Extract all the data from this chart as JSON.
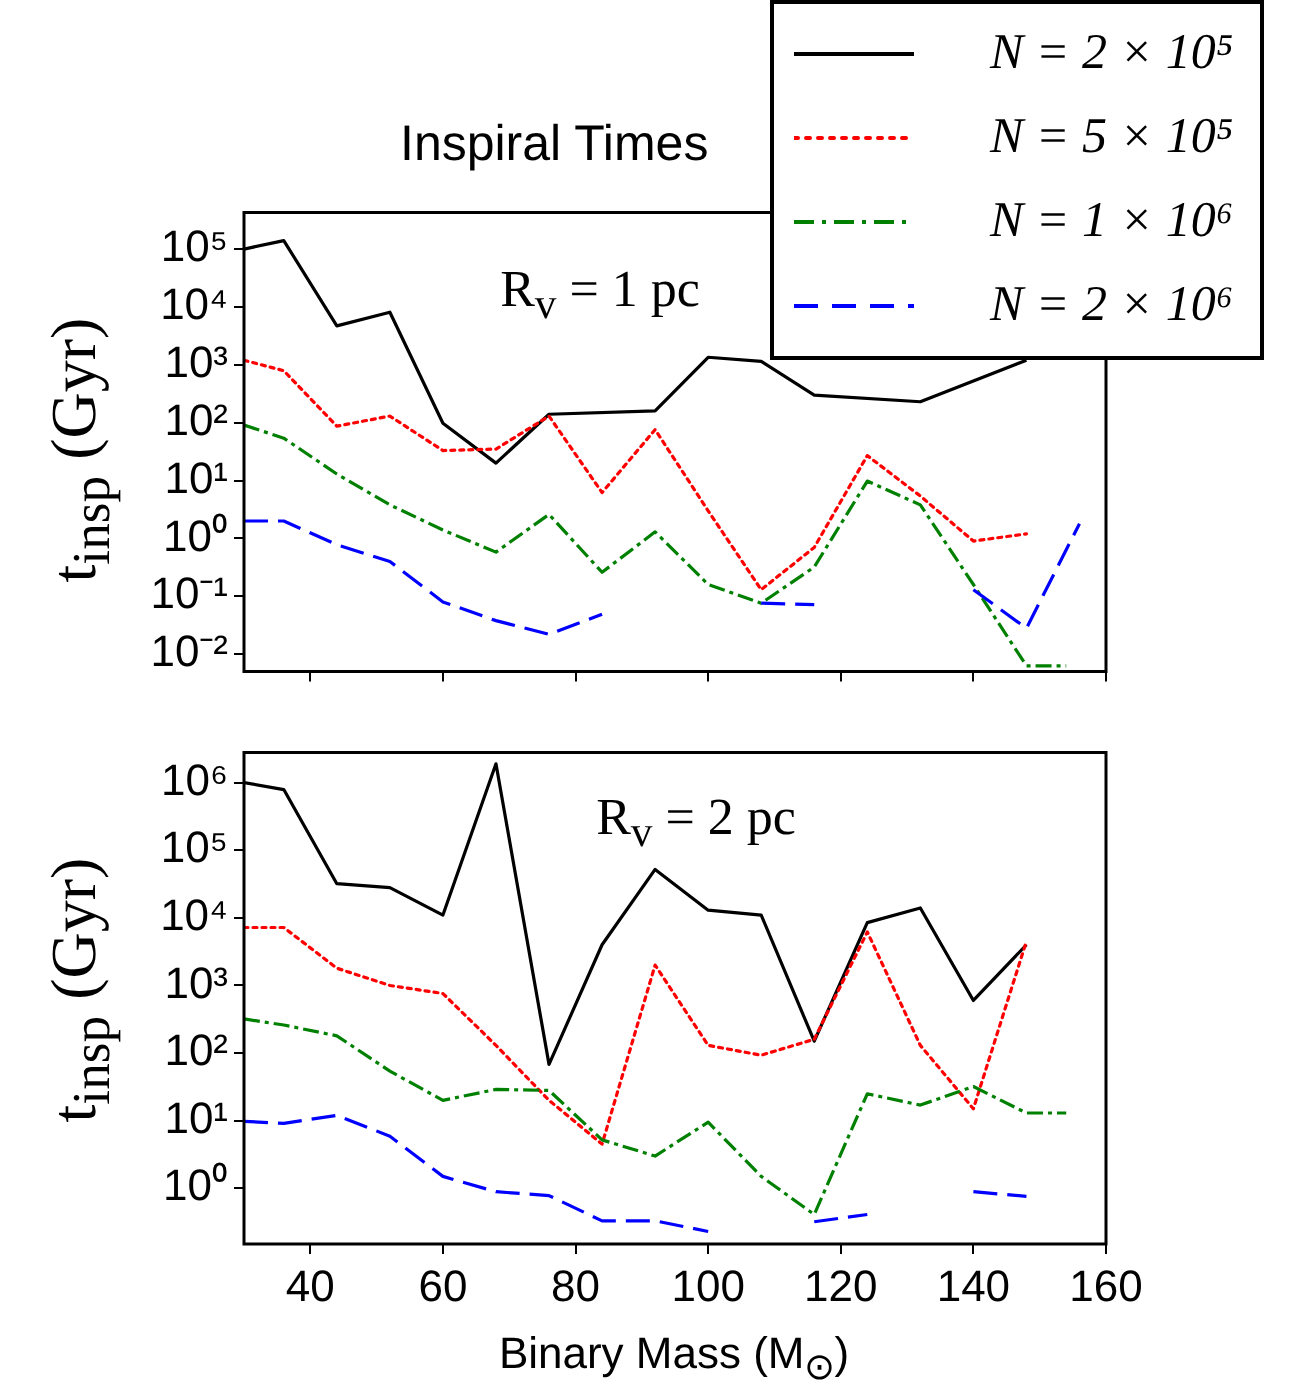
{
  "chart_data": [
    {
      "type": "line",
      "title": "Inspiral Times",
      "ylabel": "t$_{insp}$ (Gyr)",
      "annotations": [
        "R$_{v}$ = 1 pc"
      ],
      "log": "y",
      "grid": false,
      "legend": "top right",
      "tick_labels": "y",
      "xlim": [
        30,
        160
      ],
      "xticks": [
        40,
        60,
        80,
        100,
        120,
        140,
        160
      ],
      "ylim": [
        0.005,
        430000
      ],
      "yticks": [
        {
          "value": 0.01,
          "label": "10⁻²"
        },
        {
          "value": 0.1,
          "label": "10⁻¹"
        },
        {
          "value": 1,
          "label": "10⁰"
        },
        {
          "value": 10,
          "label": "10¹"
        },
        {
          "value": 100,
          "label": "10²"
        },
        {
          "value": 1000,
          "label": "10³"
        },
        {
          "value": 10000,
          "label": "10⁴"
        },
        {
          "value": 100000,
          "label": "10⁵"
        }
      ],
      "series": [
        {
          "name": "N = 2 × 10⁵",
          "color": "#000000",
          "line_style": "solid",
          "x": [
            30,
            36,
            44,
            52,
            60,
            68,
            76,
            92,
            100,
            108,
            116,
            132,
            148
          ],
          "values": [
            100000,
            140000,
            4700,
            8100,
            98,
            20,
            140,
            160,
            1350,
            1150,
            300,
            230,
            1200
          ]
        },
        {
          "name": "N = 5 × 10⁵",
          "color": "#ff0000",
          "line_style": "dotted",
          "x": [
            30,
            36,
            44,
            52,
            60,
            68,
            76,
            84,
            92,
            100,
            108,
            116,
            124,
            132,
            140,
            148
          ],
          "values": [
            1200,
            790,
            87,
            130,
            33,
            35,
            130,
            6.2,
            76,
            3,
            0.13,
            0.7,
            27,
            5.4,
            0.9,
            1.2
          ]
        },
        {
          "name": "N = 1 × 10⁶",
          "color": "#008000",
          "line_style": "dashdot",
          "x": [
            30,
            36,
            44,
            52,
            60,
            68,
            76,
            84,
            92,
            100,
            108,
            116,
            124,
            132,
            140,
            148,
            154
          ],
          "values": [
            91,
            54,
            13,
            3.8,
            1.4,
            0.58,
            2.6,
            0.26,
            1.3,
            0.16,
            0.076,
            0.32,
            9.8,
            3.8,
            0.16,
            0.0063,
            0.0063
          ]
        },
        {
          "name": "N = 2 × 10⁶",
          "color": "#0000ff",
          "line_style": "dashed",
          "x": [
            30,
            36,
            44,
            52,
            60,
            68,
            76,
            84,
            92,
            100,
            108,
            116,
            124,
            132,
            140,
            148,
            156
          ],
          "values": [
            2,
            2,
            0.78,
            0.4,
            0.08,
            0.038,
            0.022,
            0.049,
            null,
            null,
            0.076,
            0.072,
            null,
            null,
            0.13,
            0.028,
            1.8
          ]
        }
      ]
    },
    {
      "type": "line",
      "xlabel": "Binary Mass (M$_{⊙}$)",
      "ylabel": "t$_{insp}$ (Gyr)",
      "annotations": [
        "R$_{v}$ = 2 pc"
      ],
      "log": "y",
      "grid": false,
      "xlim": [
        30,
        160
      ],
      "xticks": [
        40,
        60,
        80,
        100,
        120,
        140,
        160
      ],
      "ylim": [
        0.15,
        2800000
      ],
      "yticks": [
        {
          "value": 1,
          "label": "10⁰"
        },
        {
          "value": 10,
          "label": "10¹"
        },
        {
          "value": 100,
          "label": "10²"
        },
        {
          "value": 1000,
          "label": "10³"
        },
        {
          "value": 10000,
          "label": "10⁴"
        },
        {
          "value": 100000,
          "label": "10⁵"
        },
        {
          "value": 1000000,
          "label": "10⁶"
        }
      ],
      "series": [
        {
          "color": "#000000",
          "line_style": "solid",
          "x": [
            30,
            36,
            44,
            52,
            60,
            68,
            76,
            84,
            92,
            100,
            108,
            116,
            124,
            132,
            140,
            148
          ],
          "values": [
            1000000,
            790000,
            32000,
            28000,
            11000,
            1900000,
            68,
            4000,
            52000,
            13000,
            11000,
            150,
            8500,
            14000,
            600,
            4000
          ]
        },
        {
          "color": "#ff0000",
          "line_style": "dotted",
          "x": [
            30,
            36,
            44,
            52,
            60,
            68,
            76,
            84,
            92,
            100,
            108,
            116,
            124,
            132,
            140,
            148
          ],
          "values": [
            7200,
            7200,
            1800,
            1000,
            760,
            130,
            20,
            4.5,
            2000,
            130,
            93,
            160,
            6200,
            130,
            15,
            4500
          ]
        },
        {
          "color": "#008000",
          "line_style": "dashdot",
          "x": [
            30,
            36,
            44,
            52,
            60,
            68,
            76,
            84,
            92,
            100,
            108,
            116,
            124,
            132,
            140,
            148,
            154
          ],
          "values": [
            320,
            260,
            180,
            54,
            20,
            29,
            28,
            5.2,
            3,
            9.5,
            1.5,
            0.41,
            25,
            17,
            32,
            13,
            13
          ]
        },
        {
          "color": "#0000ff",
          "line_style": "dashed",
          "x": [
            30,
            36,
            44,
            52,
            60,
            68,
            76,
            84,
            92,
            100,
            108,
            116,
            124,
            132,
            140,
            148
          ],
          "values": [
            9.8,
            9.1,
            12,
            5.9,
            1.5,
            0.89,
            0.78,
            0.33,
            0.33,
            0.23,
            null,
            0.32,
            0.41,
            null,
            0.89,
            0.76
          ]
        }
      ]
    }
  ]
}
